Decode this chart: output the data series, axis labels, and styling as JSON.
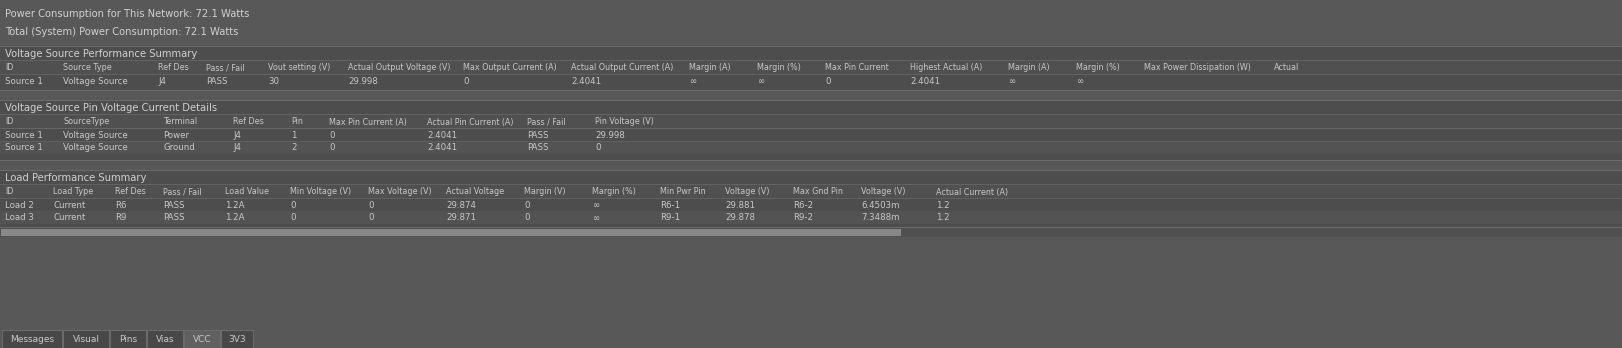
{
  "bg_color": "#585858",
  "panel_color": "#4d4d4d",
  "header_row_color": "#505050",
  "data_row_even": "#4d4d4d",
  "data_row_odd": "#535353",
  "text_color": "#c8c8c8",
  "title_color": "#d0d0d0",
  "border_color": "#6a6a6a",
  "tab_active_color": "#606060",
  "tab_inactive_color": "#484848",
  "scrollbar_bg": "#505050",
  "scrollbar_fg": "#888888",
  "top_lines": [
    "Power Consumption for This Network: 72.1 Watts",
    "Total (System) Power Consumption: 72.1 Watts"
  ],
  "section1_title": "Voltage Source Performance Summary",
  "section1_headers": [
    "ID",
    "Source Type",
    "Ref Des",
    "Pass / Fail",
    "Vout setting (V)",
    "Actual Output Voltage (V)",
    "Max Output Current (A)",
    "Actual Output Current (A)",
    "Margin (A)",
    "Margin (%)",
    "Max Pin Current",
    "Highest Actual (A)",
    "Margin (A)",
    "Margin (%)",
    "Max Power Dissipation (W)",
    "Actual"
  ],
  "section1_col_widths": [
    58,
    95,
    48,
    62,
    80,
    115,
    108,
    118,
    68,
    68,
    85,
    98,
    68,
    68,
    130,
    60
  ],
  "section1_rows": [
    [
      "Source 1",
      "Voltage Source",
      "J4",
      "PASS",
      "30",
      "29.998",
      "0",
      "2.4041",
      "∞",
      "∞",
      "0",
      "2.4041",
      "∞",
      "∞",
      "",
      ""
    ]
  ],
  "section2_title": "Voltage Source Pin Voltage Current Details",
  "section2_headers": [
    "ID",
    "SourceType",
    "Terminal",
    "Ref Des",
    "Pin",
    "Max Pin Current (A)",
    "Actual Pin Current (A)",
    "Pass / Fail",
    "Pin Voltage (V)"
  ],
  "section2_col_widths": [
    58,
    100,
    70,
    58,
    38,
    98,
    100,
    68,
    85
  ],
  "section2_rows": [
    [
      "Source 1",
      "Voltage Source",
      "Power",
      "J4",
      "1",
      "0",
      "2.4041",
      "PASS",
      "29.998"
    ],
    [
      "Source 1",
      "Voltage Source",
      "Ground",
      "J4",
      "2",
      "0",
      "2.4041",
      "PASS",
      "0"
    ]
  ],
  "section3_title": "Load Performance Summary",
  "section3_headers": [
    "ID",
    "Load Type",
    "Ref Des",
    "Pass / Fail",
    "Load Value",
    "Min Voltage (V)",
    "Max Voltage (V)",
    "Actual Voltage",
    "Margin (V)",
    "Margin (%)",
    "Min Pwr Pin",
    "Voltage (V)",
    "Max Gnd Pin",
    "Voltage (V)",
    "Actual Current (A)"
  ],
  "section3_col_widths": [
    48,
    62,
    48,
    62,
    65,
    78,
    78,
    78,
    68,
    68,
    65,
    68,
    68,
    75,
    85
  ],
  "section3_rows": [
    [
      "Load 2",
      "Current",
      "R6",
      "PASS",
      "1.2A",
      "0",
      "0",
      "29.874",
      "0",
      "∞",
      "R6-1",
      "29.881",
      "R6-2",
      "6.4503m",
      "1.2"
    ],
    [
      "Load 3",
      "Current",
      "R9",
      "PASS",
      "1.2A",
      "0",
      "0",
      "29.871",
      "0",
      "∞",
      "R9-1",
      "29.878",
      "R9-2",
      "7.3488m",
      "1.2"
    ]
  ],
  "tabs": [
    "Messages",
    "Visual",
    "Pins",
    "Vias",
    "VCC",
    "3V3"
  ],
  "active_tab": "VCC",
  "tab_widths": [
    60,
    46,
    36,
    36,
    36,
    32
  ]
}
